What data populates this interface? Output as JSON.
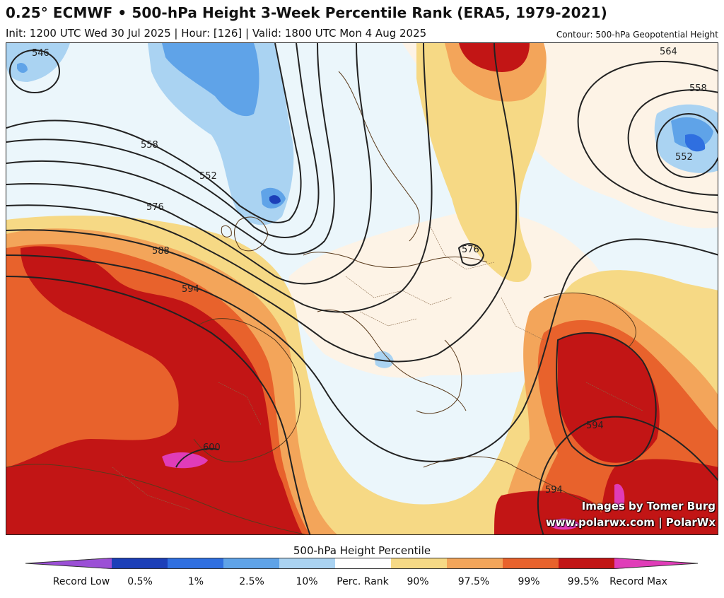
{
  "header": {
    "title": "0.25° ECMWF • 500-hPa Height 3-Week Percentile Rank (ERA5, 1979-2021)",
    "subtitle": "Init: 1200 UTC Wed 30 Jul 2025 | Hour: [126] | Valid: 1800 UTC Mon 4 Aug 2025",
    "contour_note": "Contour: 500-hPa Geopotential Height"
  },
  "map": {
    "contour_labels": [
      "546",
      "558",
      "552",
      "576",
      "588",
      "594",
      "564",
      "558",
      "552",
      "576",
      "594",
      "594",
      "600"
    ],
    "colors": {
      "record_low": "#9b4fd6",
      "p0_5": "#1c3fb8",
      "p1": "#2f6fe0",
      "p2_5": "#5fa3e8",
      "p10": "#aad3f2",
      "near_normal": "#ebf6fb",
      "near_normal_warm": "#fdf3e6",
      "p90": "#f6d985",
      "p97_5": "#f3a55a",
      "p99": "#e8622c",
      "p99_5": "#c21515",
      "record_max": "#e03cb8"
    }
  },
  "credits": {
    "line1": "Images by Tomer Burg",
    "line2": "www.polarwx.com | PolarWx"
  },
  "colorbar": {
    "title": "500-hPa Height Percentile",
    "labels": [
      "Record Low",
      "0.5%",
      "1%",
      "2.5%",
      "10%",
      "Perc. Rank",
      "90%",
      "97.5%",
      "99%",
      "99.5%",
      "Record Max"
    ],
    "segments": [
      "#1c3fb8",
      "#2f6fe0",
      "#5fa3e8",
      "#aad3f2",
      "#ffffff",
      "#f6d985",
      "#f3a55a",
      "#e8622c",
      "#c21515",
      "#e03cb8"
    ],
    "low_arrow": "#9b4fd6",
    "high_arrow": "#e03cb8"
  }
}
